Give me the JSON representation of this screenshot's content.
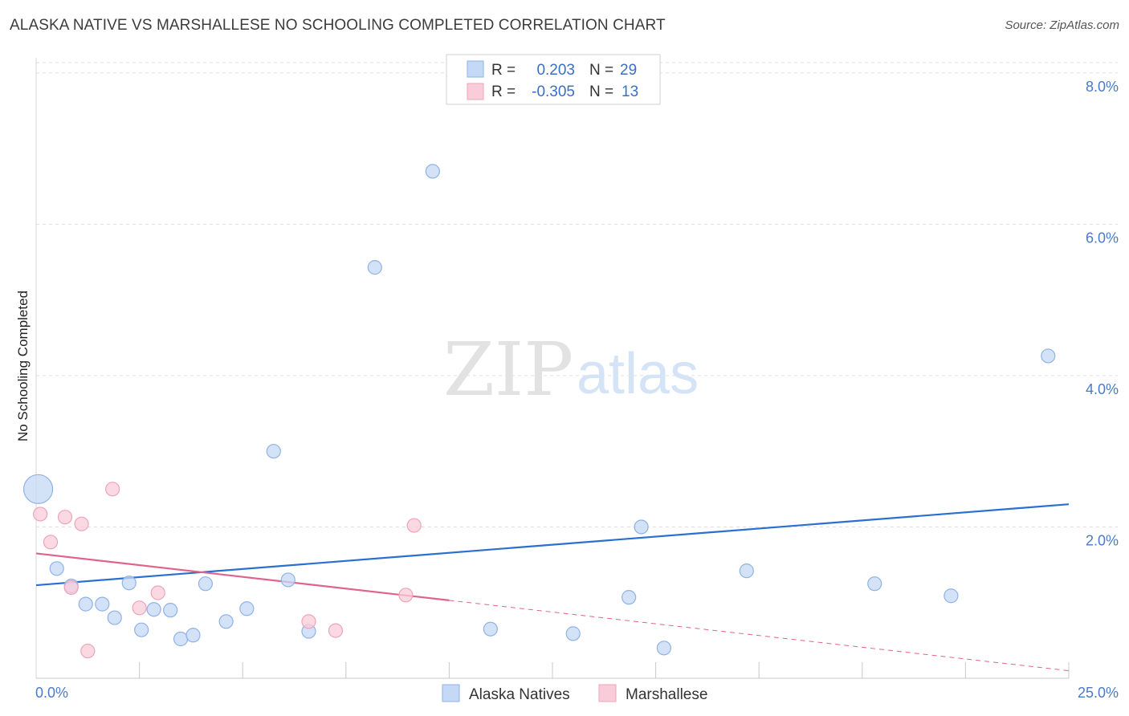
{
  "title": "ALASKA NATIVE VS MARSHALLESE NO SCHOOLING COMPLETED CORRELATION CHART",
  "source": "Source: ZipAtlas.com",
  "watermark": {
    "part1": "ZIP",
    "part2": "atlas"
  },
  "colors": {
    "blue_fill": "#c5d8f5",
    "blue_stroke": "#8fb2e6",
    "blue_line": "#2a70d0",
    "pink_fill": "#f9ccd9",
    "pink_stroke": "#eea3b9",
    "pink_line": "#e0628e",
    "tick_text": "#4a7ac8",
    "grid": "#dddddd"
  },
  "legend": {
    "rows": [
      {
        "r_label": "R =",
        "r_value": "0.203",
        "n_label": "N =",
        "n_value": "29",
        "color": "blue"
      },
      {
        "r_label": "R =",
        "r_value": "-0.305",
        "n_label": "N =",
        "n_value": "13",
        "color": "pink"
      }
    ]
  },
  "chart_data": {
    "type": "scatter",
    "title": "ALASKA NATIVE VS MARSHALLESE NO SCHOOLING COMPLETED CORRELATION CHART",
    "xlabel": "",
    "ylabel": "No Schooling Completed",
    "xlim": [
      0,
      25
    ],
    "ylim": [
      0,
      8.2
    ],
    "x_tick_labels": [
      "0.0%",
      "25.0%"
    ],
    "y_ticks": [
      2,
      4,
      6,
      8
    ],
    "y_tick_labels": [
      "2.0%",
      "4.0%",
      "6.0%",
      "8.0%"
    ],
    "grid": true,
    "legend_position": "top-center",
    "series": [
      {
        "name": "Alaska Natives",
        "color": "blue",
        "points": [
          {
            "x": 0.05,
            "y": 2.5,
            "big": true
          },
          {
            "x": 0.5,
            "y": 1.45
          },
          {
            "x": 0.85,
            "y": 1.22
          },
          {
            "x": 1.2,
            "y": 0.98
          },
          {
            "x": 1.6,
            "y": 0.98
          },
          {
            "x": 1.9,
            "y": 0.8
          },
          {
            "x": 2.25,
            "y": 1.26
          },
          {
            "x": 2.55,
            "y": 0.64
          },
          {
            "x": 2.85,
            "y": 0.91
          },
          {
            "x": 3.25,
            "y": 0.9
          },
          {
            "x": 3.5,
            "y": 0.52
          },
          {
            "x": 3.8,
            "y": 0.57
          },
          {
            "x": 4.1,
            "y": 1.25
          },
          {
            "x": 4.6,
            "y": 0.75
          },
          {
            "x": 5.1,
            "y": 0.92
          },
          {
            "x": 5.75,
            "y": 3.0
          },
          {
            "x": 6.1,
            "y": 1.3
          },
          {
            "x": 6.6,
            "y": 0.62
          },
          {
            "x": 8.2,
            "y": 5.43
          },
          {
            "x": 9.6,
            "y": 6.7
          },
          {
            "x": 11.0,
            "y": 0.65
          },
          {
            "x": 13.0,
            "y": 0.59
          },
          {
            "x": 14.35,
            "y": 1.07
          },
          {
            "x": 14.65,
            "y": 2.0
          },
          {
            "x": 15.2,
            "y": 0.4
          },
          {
            "x": 17.2,
            "y": 1.42
          },
          {
            "x": 20.3,
            "y": 1.25
          },
          {
            "x": 22.15,
            "y": 1.09
          },
          {
            "x": 24.5,
            "y": 4.26
          }
        ],
        "trend": {
          "x1": 0,
          "y1": 1.23,
          "x2": 25,
          "y2": 2.3
        }
      },
      {
        "name": "Marshallese",
        "color": "pink",
        "points": [
          {
            "x": 0.1,
            "y": 2.17
          },
          {
            "x": 0.35,
            "y": 1.8
          },
          {
            "x": 0.7,
            "y": 2.13
          },
          {
            "x": 0.85,
            "y": 1.2
          },
          {
            "x": 1.1,
            "y": 2.04
          },
          {
            "x": 1.25,
            "y": 0.36
          },
          {
            "x": 1.85,
            "y": 2.5
          },
          {
            "x": 2.5,
            "y": 0.93
          },
          {
            "x": 2.95,
            "y": 1.13
          },
          {
            "x": 6.6,
            "y": 0.75
          },
          {
            "x": 7.25,
            "y": 0.63
          },
          {
            "x": 8.95,
            "y": 1.1
          },
          {
            "x": 9.15,
            "y": 2.02
          }
        ],
        "trend": {
          "x1": 0,
          "y1": 1.65,
          "x2": 10,
          "y2": 1.03
        },
        "trend_dashed": {
          "x1": 10,
          "y1": 1.03,
          "x2": 25,
          "y2": 0.1
        }
      }
    ]
  }
}
